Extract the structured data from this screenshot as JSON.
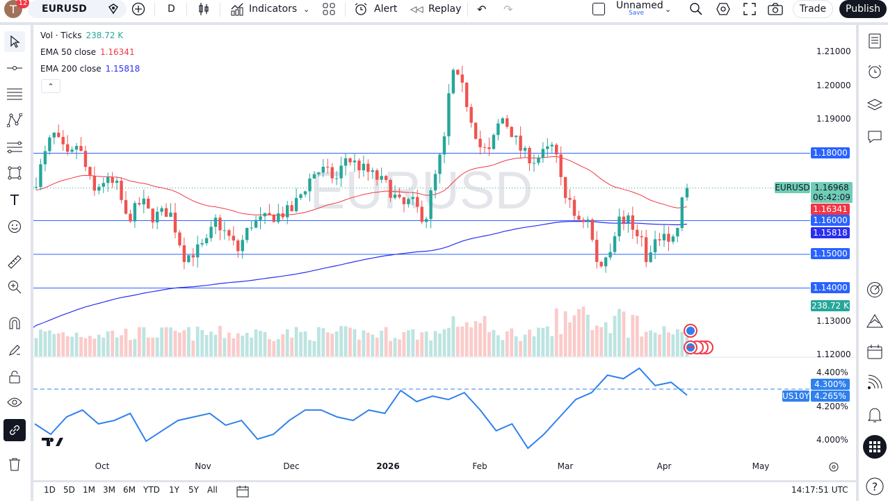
{
  "header": {
    "avatar_initial": "T",
    "notifications": "12",
    "symbol": "EURUSD",
    "interval": "D",
    "indicators": "Indicators",
    "alert": "Alert",
    "replay": "Replay",
    "layout_name": "Unnamed",
    "save": "Save",
    "trade": "Trade",
    "publish": "Publish"
  },
  "legend": {
    "vol_label": "Vol · Ticks",
    "vol_value": "238.72 K",
    "ema50_label": "EMA 50 close",
    "ema50_value": "1.16341",
    "ema200_label": "EMA 200 close",
    "ema200_value": "1.15818"
  },
  "watermark": "EURUSD",
  "price_axis": {
    "ticks": [
      "1.21000",
      "1.20000",
      "1.19000",
      "1.13000",
      "1.12000"
    ],
    "last_symbol": "EURUSD",
    "last_price": "1.16968",
    "countdown": "06:42:09",
    "ema50": "1.16341",
    "ema200": "1.15818",
    "lines": [
      "1.18000",
      "1.16000",
      "1.15000",
      "1.14000"
    ],
    "volume": "238.72 K"
  },
  "us10y": {
    "label": "US10Y",
    "ticks": [
      "4.400%",
      "4.200%",
      "4.000%"
    ],
    "marker_price": "4.300%",
    "last": "4.265%"
  },
  "time_axis": [
    "Oct",
    "Nov",
    "Dec",
    "2026",
    "Feb",
    "Mar",
    "Apr",
    "May"
  ],
  "bottom": {
    "ranges": [
      "1D",
      "5D",
      "1M",
      "3M",
      "6M",
      "YTD",
      "1Y",
      "5Y",
      "All"
    ],
    "clock": "14:17:51 UTC"
  },
  "colors": {
    "up": "#26a69a",
    "down": "#ef5350",
    "ema50": "#f23645",
    "ema200": "#2a2ef0",
    "hline": "#2962ff",
    "us10y": "#2f80ed",
    "publish_bg": "#131722",
    "badge": "#f23645"
  },
  "chart_data": {
    "type": "candlestick",
    "symbol": "EURUSD",
    "interval": "D",
    "close_keypoints": [
      [
        "2025-09-15",
        1.172
      ],
      [
        "2025-09-19",
        1.186
      ],
      [
        "2025-09-23",
        1.178
      ],
      [
        "2025-09-25",
        1.183
      ],
      [
        "2025-09-29",
        1.168
      ],
      [
        "2025-10-01",
        1.172
      ],
      [
        "2025-10-06",
        1.17
      ],
      [
        "2025-10-09",
        1.16
      ],
      [
        "2025-10-14",
        1.166
      ],
      [
        "2025-10-17",
        1.161
      ],
      [
        "2025-10-23",
        1.163
      ],
      [
        "2025-10-28",
        1.149
      ],
      [
        "2025-11-04",
        1.153
      ],
      [
        "2025-11-07",
        1.16
      ],
      [
        "2025-11-12",
        1.154
      ],
      [
        "2025-11-14",
        1.151
      ],
      [
        "2025-11-18",
        1.159
      ],
      [
        "2025-12-01",
        1.163
      ],
      [
        "2025-12-08",
        1.174
      ],
      [
        "2025-12-11",
        1.175
      ],
      [
        "2025-12-16",
        1.172
      ],
      [
        "2025-12-18",
        1.179
      ],
      [
        "2025-12-31",
        1.171
      ],
      [
        "2026-01-06",
        1.164
      ],
      [
        "2026-01-09",
        1.166
      ],
      [
        "2026-01-14",
        1.16
      ],
      [
        "2026-01-16",
        1.168
      ],
      [
        "2026-01-21",
        1.185
      ],
      [
        "2026-01-23",
        1.205
      ],
      [
        "2026-01-27",
        1.199
      ],
      [
        "2026-02-02",
        1.182
      ],
      [
        "2026-02-05",
        1.18
      ],
      [
        "2026-02-09",
        1.191
      ],
      [
        "2026-02-12",
        1.187
      ],
      [
        "2026-02-16",
        1.18
      ],
      [
        "2026-02-20",
        1.178
      ],
      [
        "2026-02-26",
        1.182
      ],
      [
        "2026-03-02",
        1.168
      ],
      [
        "2026-03-05",
        1.161
      ],
      [
        "2026-03-09",
        1.16
      ],
      [
        "2026-03-12",
        1.145
      ],
      [
        "2026-03-16",
        1.153
      ],
      [
        "2026-03-18",
        1.16
      ],
      [
        "2026-03-20",
        1.161
      ],
      [
        "2026-03-25",
        1.155
      ],
      [
        "2026-03-27",
        1.148
      ],
      [
        "2026-04-01",
        1.158
      ],
      [
        "2026-04-03",
        1.153
      ],
      [
        "2026-04-06",
        1.16
      ],
      [
        "2026-04-07",
        1.16968
      ]
    ],
    "horizontal_lines": [
      1.18,
      1.16,
      1.15,
      1.14
    ],
    "ylim": [
      1.12,
      1.21
    ],
    "us10y_values": [
      4.095,
      4.033,
      4.136,
      4.177,
      4.095,
      4.115,
      4.157,
      3.992,
      4.054,
      4.115,
      4.136,
      4.157,
      4.087,
      4.115,
      4.004,
      4.033,
      4.115,
      4.177,
      4.177,
      4.136,
      4.115,
      4.177,
      4.157,
      4.293,
      4.227,
      4.26,
      4.239,
      4.28,
      4.177,
      4.054,
      4.095,
      3.95,
      4.033,
      4.136,
      4.239,
      4.28,
      4.384,
      4.363,
      4.425,
      4.322,
      4.342,
      4.265
    ],
    "us10y_ylim": [
      3.95,
      4.45
    ]
  }
}
